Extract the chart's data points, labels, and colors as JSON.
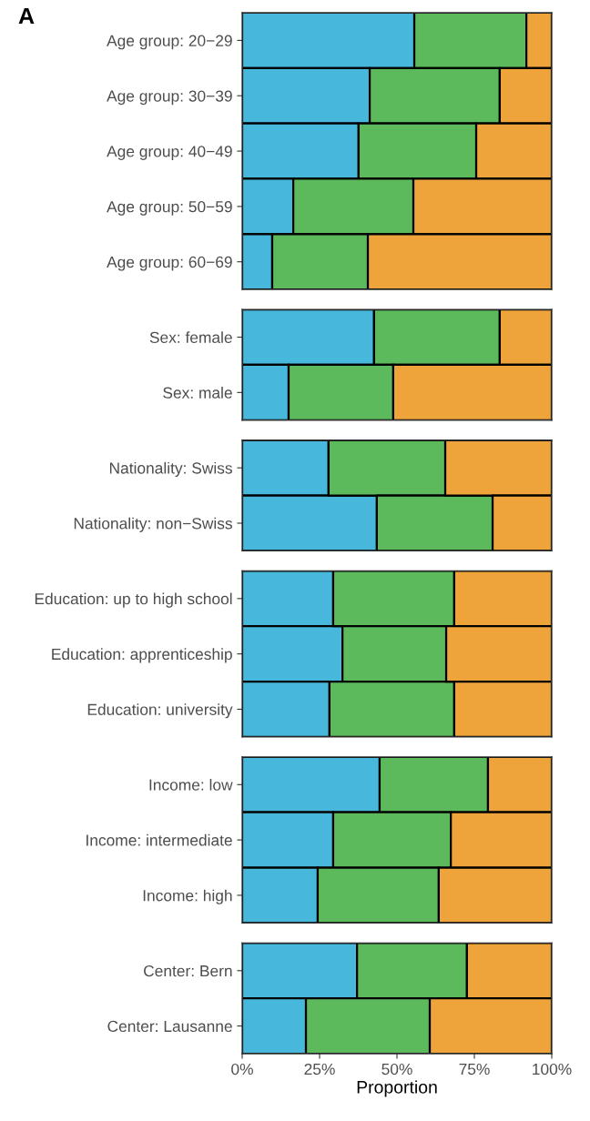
{
  "chart_data": [
    {
      "type": "bar",
      "orientation": "horizontal",
      "stacked": true,
      "annotations": [
        "A"
      ],
      "categories": [
        "Age group: 20−29",
        "Age group: 30−39",
        "Age group: 40−49",
        "Age group: 50−59",
        "Age group: 60−69"
      ],
      "series": [
        {
          "color": "#47b8dc",
          "values": [
            55.6,
            41.2,
            37.6,
            16.5,
            9.7
          ]
        },
        {
          "color": "#5cba5c",
          "values": [
            36.2,
            42.0,
            38.0,
            38.8,
            30.9
          ]
        },
        {
          "color": "#eea43a",
          "values": [
            8.2,
            16.8,
            24.4,
            44.7,
            59.4
          ]
        }
      ],
      "xlim": [
        0,
        100
      ],
      "tick_labels": "y",
      "grid": false,
      "legend": false
    },
    {
      "type": "bar",
      "orientation": "horizontal",
      "stacked": true,
      "categories": [
        "Sex: female",
        "Sex: male"
      ],
      "series": [
        {
          "color": "#47b8dc",
          "values": [
            42.6,
            15.0
          ]
        },
        {
          "color": "#5cba5c",
          "values": [
            40.6,
            33.8
          ]
        },
        {
          "color": "#eea43a",
          "values": [
            16.8,
            51.2
          ]
        }
      ],
      "xlim": [
        0,
        100
      ],
      "tick_labels": "y",
      "grid": false,
      "legend": false
    },
    {
      "type": "bar",
      "orientation": "horizontal",
      "stacked": true,
      "categories": [
        "Nationality: Swiss",
        "Nationality: non−Swiss"
      ],
      "series": [
        {
          "color": "#47b8dc",
          "values": [
            27.9,
            43.5
          ]
        },
        {
          "color": "#5cba5c",
          "values": [
            37.7,
            37.4
          ]
        },
        {
          "color": "#eea43a",
          "values": [
            34.4,
            19.1
          ]
        }
      ],
      "xlim": [
        0,
        100
      ],
      "tick_labels": "y",
      "grid": false,
      "legend": false
    },
    {
      "type": "bar",
      "orientation": "horizontal",
      "stacked": true,
      "categories": [
        "Education: up to high school",
        "Education: apprenticeship",
        "Education: university"
      ],
      "series": [
        {
          "color": "#47b8dc",
          "values": [
            29.4,
            32.4,
            28.2
          ]
        },
        {
          "color": "#5cba5c",
          "values": [
            39.1,
            33.5,
            40.3
          ]
        },
        {
          "color": "#eea43a",
          "values": [
            31.5,
            34.1,
            31.5
          ]
        }
      ],
      "xlim": [
        0,
        100
      ],
      "tick_labels": "y",
      "grid": false,
      "legend": false
    },
    {
      "type": "bar",
      "orientation": "horizontal",
      "stacked": true,
      "categories": [
        "Income: low",
        "Income: intermediate",
        "Income: high"
      ],
      "series": [
        {
          "color": "#47b8dc",
          "values": [
            44.4,
            29.4,
            24.4
          ]
        },
        {
          "color": "#5cba5c",
          "values": [
            35.0,
            38.0,
            39.1
          ]
        },
        {
          "color": "#eea43a",
          "values": [
            20.6,
            32.6,
            36.5
          ]
        }
      ],
      "xlim": [
        0,
        100
      ],
      "tick_labels": "y",
      "grid": false,
      "legend": false
    },
    {
      "type": "bar",
      "orientation": "horizontal",
      "stacked": true,
      "xlabel": "Proportion",
      "categories": [
        "Center: Bern",
        "Center: Lausanne"
      ],
      "series": [
        {
          "color": "#47b8dc",
          "values": [
            37.1,
            20.6
          ]
        },
        {
          "color": "#5cba5c",
          "values": [
            35.5,
            40.0
          ]
        },
        {
          "color": "#eea43a",
          "values": [
            27.4,
            39.4
          ]
        }
      ],
      "xlim": [
        0,
        100
      ],
      "xticks": [
        {
          "value": 0,
          "label": "0%"
        },
        {
          "value": 25,
          "label": "25%"
        },
        {
          "value": 50,
          "label": "50%"
        },
        {
          "value": 75,
          "label": "75%"
        },
        {
          "value": 100,
          "label": "100%"
        }
      ],
      "grid": false,
      "legend": false
    }
  ]
}
